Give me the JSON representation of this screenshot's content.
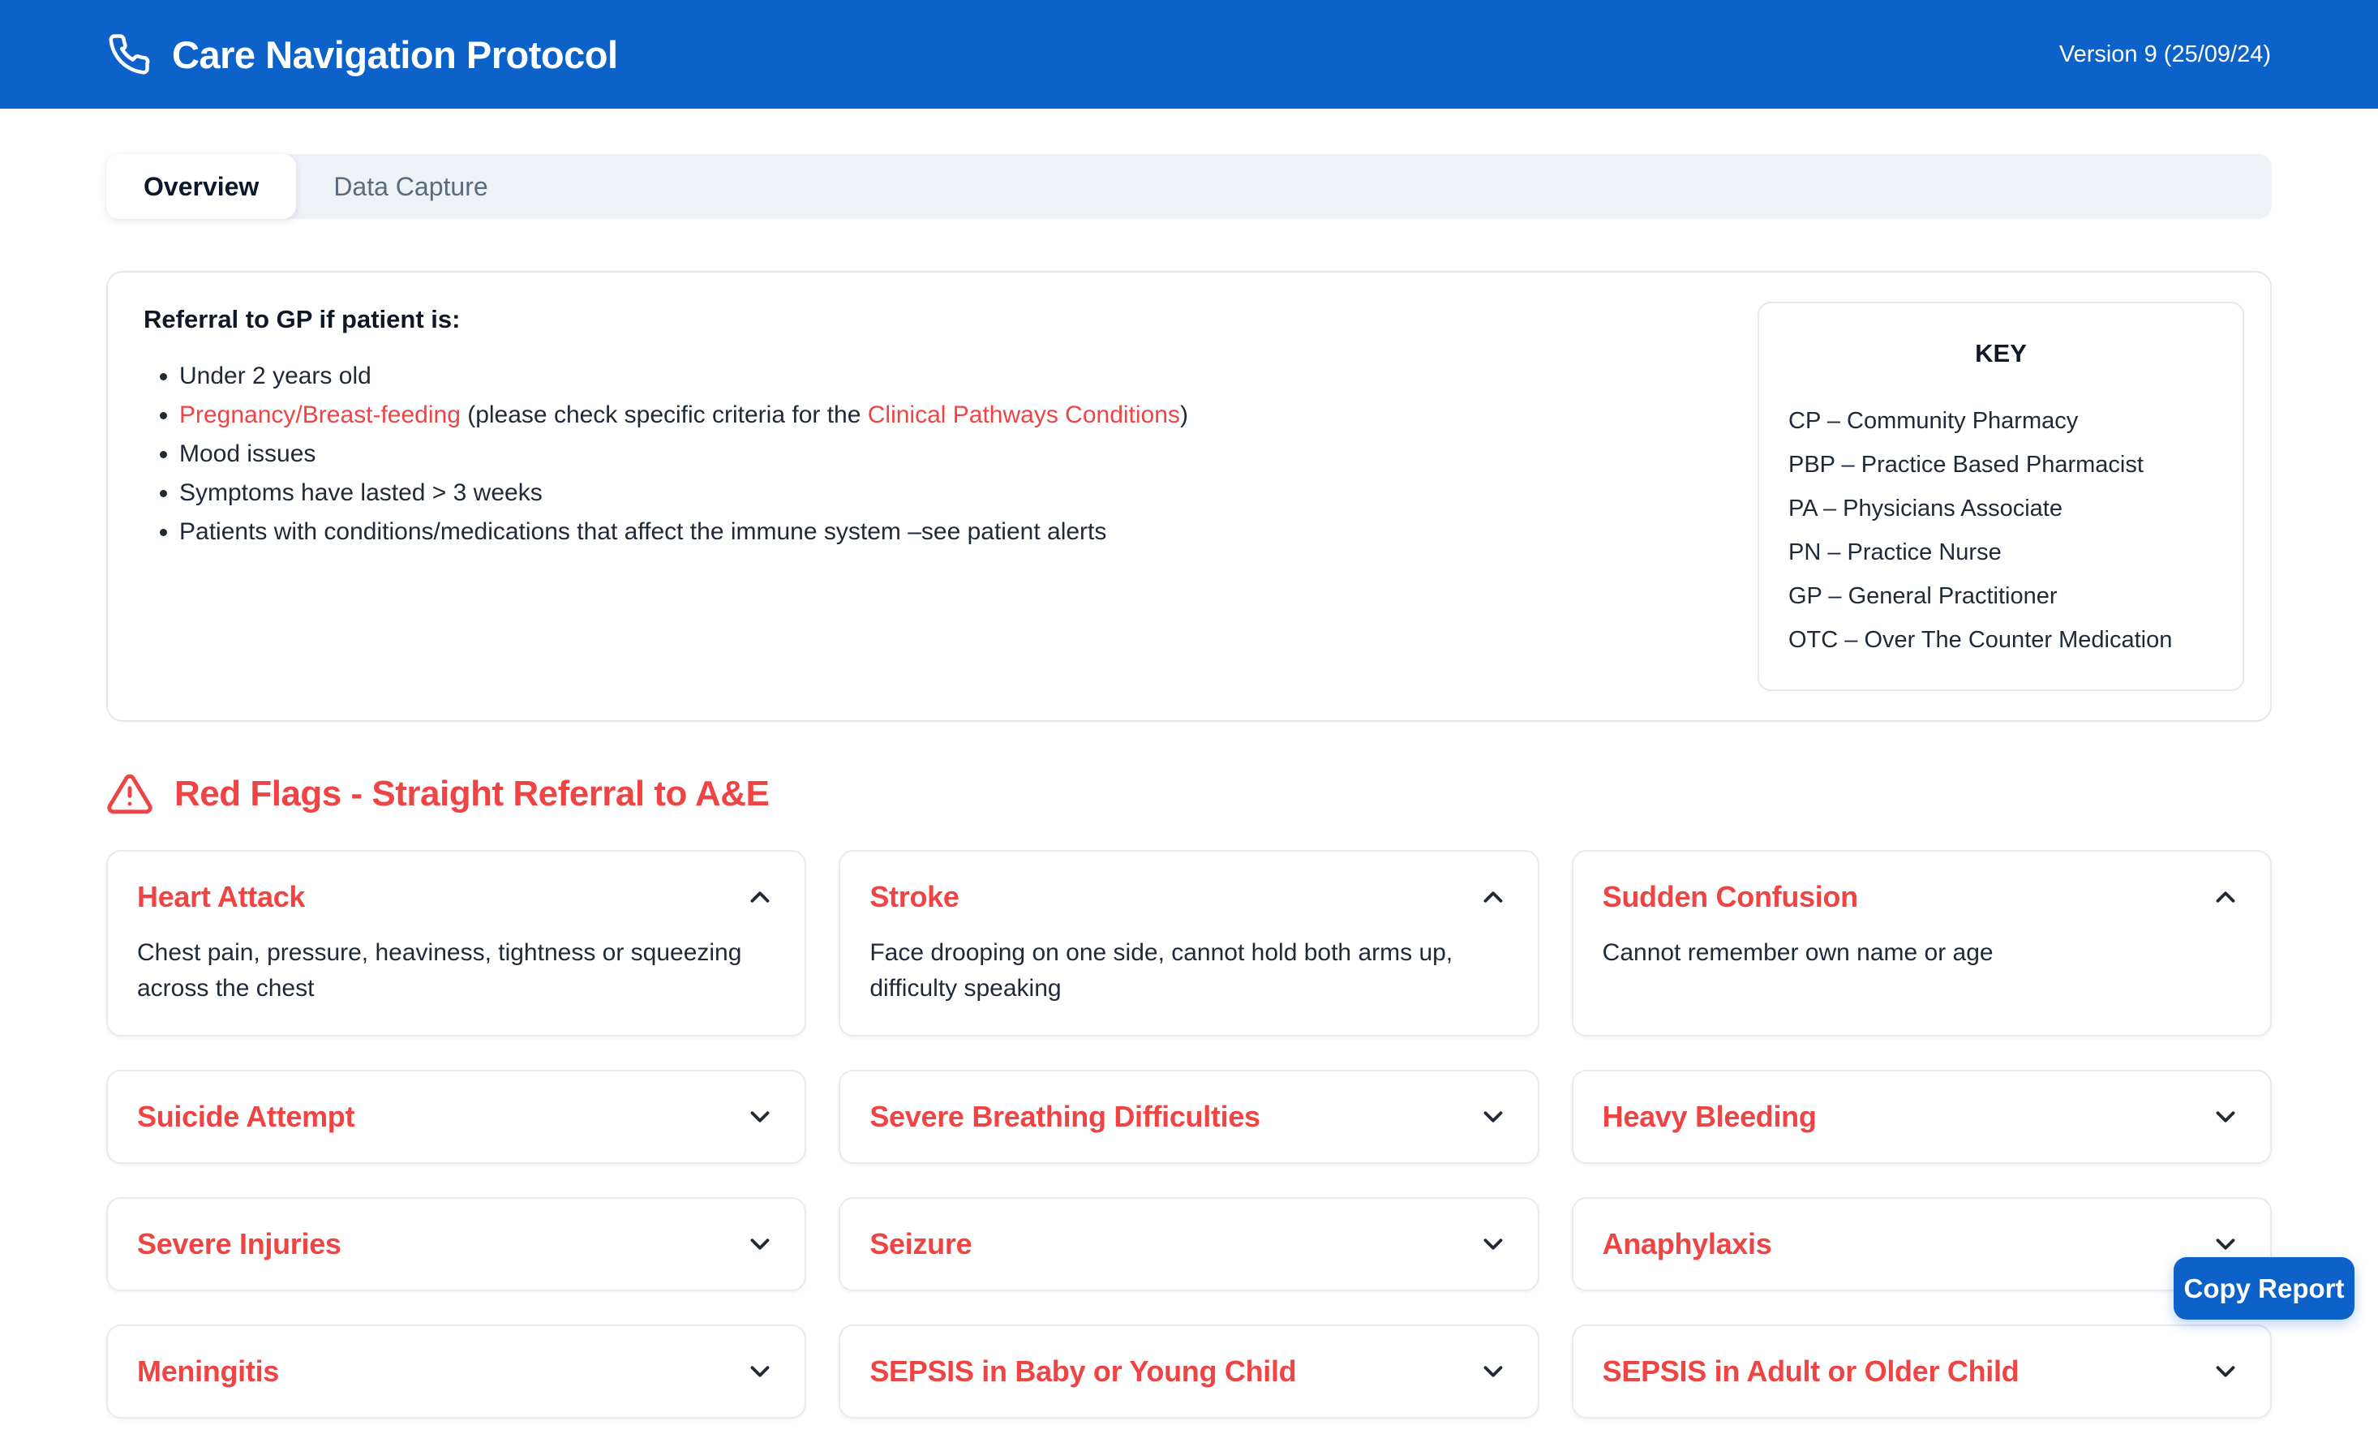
{
  "header": {
    "title": "Care Navigation Protocol",
    "version": "Version 9 (25/09/24)"
  },
  "tabs": [
    {
      "label": "Overview",
      "active": true
    },
    {
      "label": "Data Capture",
      "active": false
    }
  ],
  "referral": {
    "heading": "Referral to GP if patient is:",
    "bullets": [
      [
        {
          "text": "Under 2 years old"
        }
      ],
      [
        {
          "text": "Pregnancy/Breast-feeding",
          "red": true
        },
        {
          "text": " (please check specific criteria for the "
        },
        {
          "text": "Clinical Pathways Conditions",
          "red": true
        },
        {
          "text": ")"
        }
      ],
      [
        {
          "text": "Mood issues"
        }
      ],
      [
        {
          "text": "Symptoms have lasted > 3 weeks"
        }
      ],
      [
        {
          "text": "Patients with conditions/medications that affect the immune system –see patient alerts"
        }
      ]
    ]
  },
  "key": {
    "title": "KEY",
    "entries": [
      "CP – Community Pharmacy",
      "PBP – Practice Based Pharmacist",
      "PA – Physicians Associate",
      "PN – Practice Nurse",
      "GP – General Practitioner",
      "OTC – Over The Counter Medication"
    ]
  },
  "red_flags": {
    "heading": "Red Flags - Straight Referral to A&E",
    "cards": [
      {
        "title": "Heart Attack",
        "body": "Chest pain, pressure, heaviness, tightness or squeezing across the chest",
        "expanded": true
      },
      {
        "title": "Stroke",
        "body": "Face drooping on one side, cannot hold both arms up, difficulty speaking",
        "expanded": true
      },
      {
        "title": "Sudden Confusion",
        "body": "Cannot remember own name or age",
        "expanded": true
      },
      {
        "title": "Suicide Attempt",
        "expanded": false
      },
      {
        "title": "Severe Breathing Difficulties",
        "expanded": false
      },
      {
        "title": "Heavy Bleeding",
        "expanded": false
      },
      {
        "title": "Severe Injuries",
        "expanded": false
      },
      {
        "title": "Seizure",
        "expanded": false
      },
      {
        "title": "Anaphylaxis",
        "expanded": false
      },
      {
        "title": "Meningitis",
        "expanded": false
      },
      {
        "title": "SEPSIS in Baby or Young Child",
        "expanded": false
      },
      {
        "title": "SEPSIS in Adult or Older Child",
        "expanded": false
      }
    ]
  },
  "footer": {
    "copy_report_label": "Copy Report"
  },
  "colors": {
    "primary_blue": "#0d62c9",
    "alert_red": "#ef4444"
  }
}
